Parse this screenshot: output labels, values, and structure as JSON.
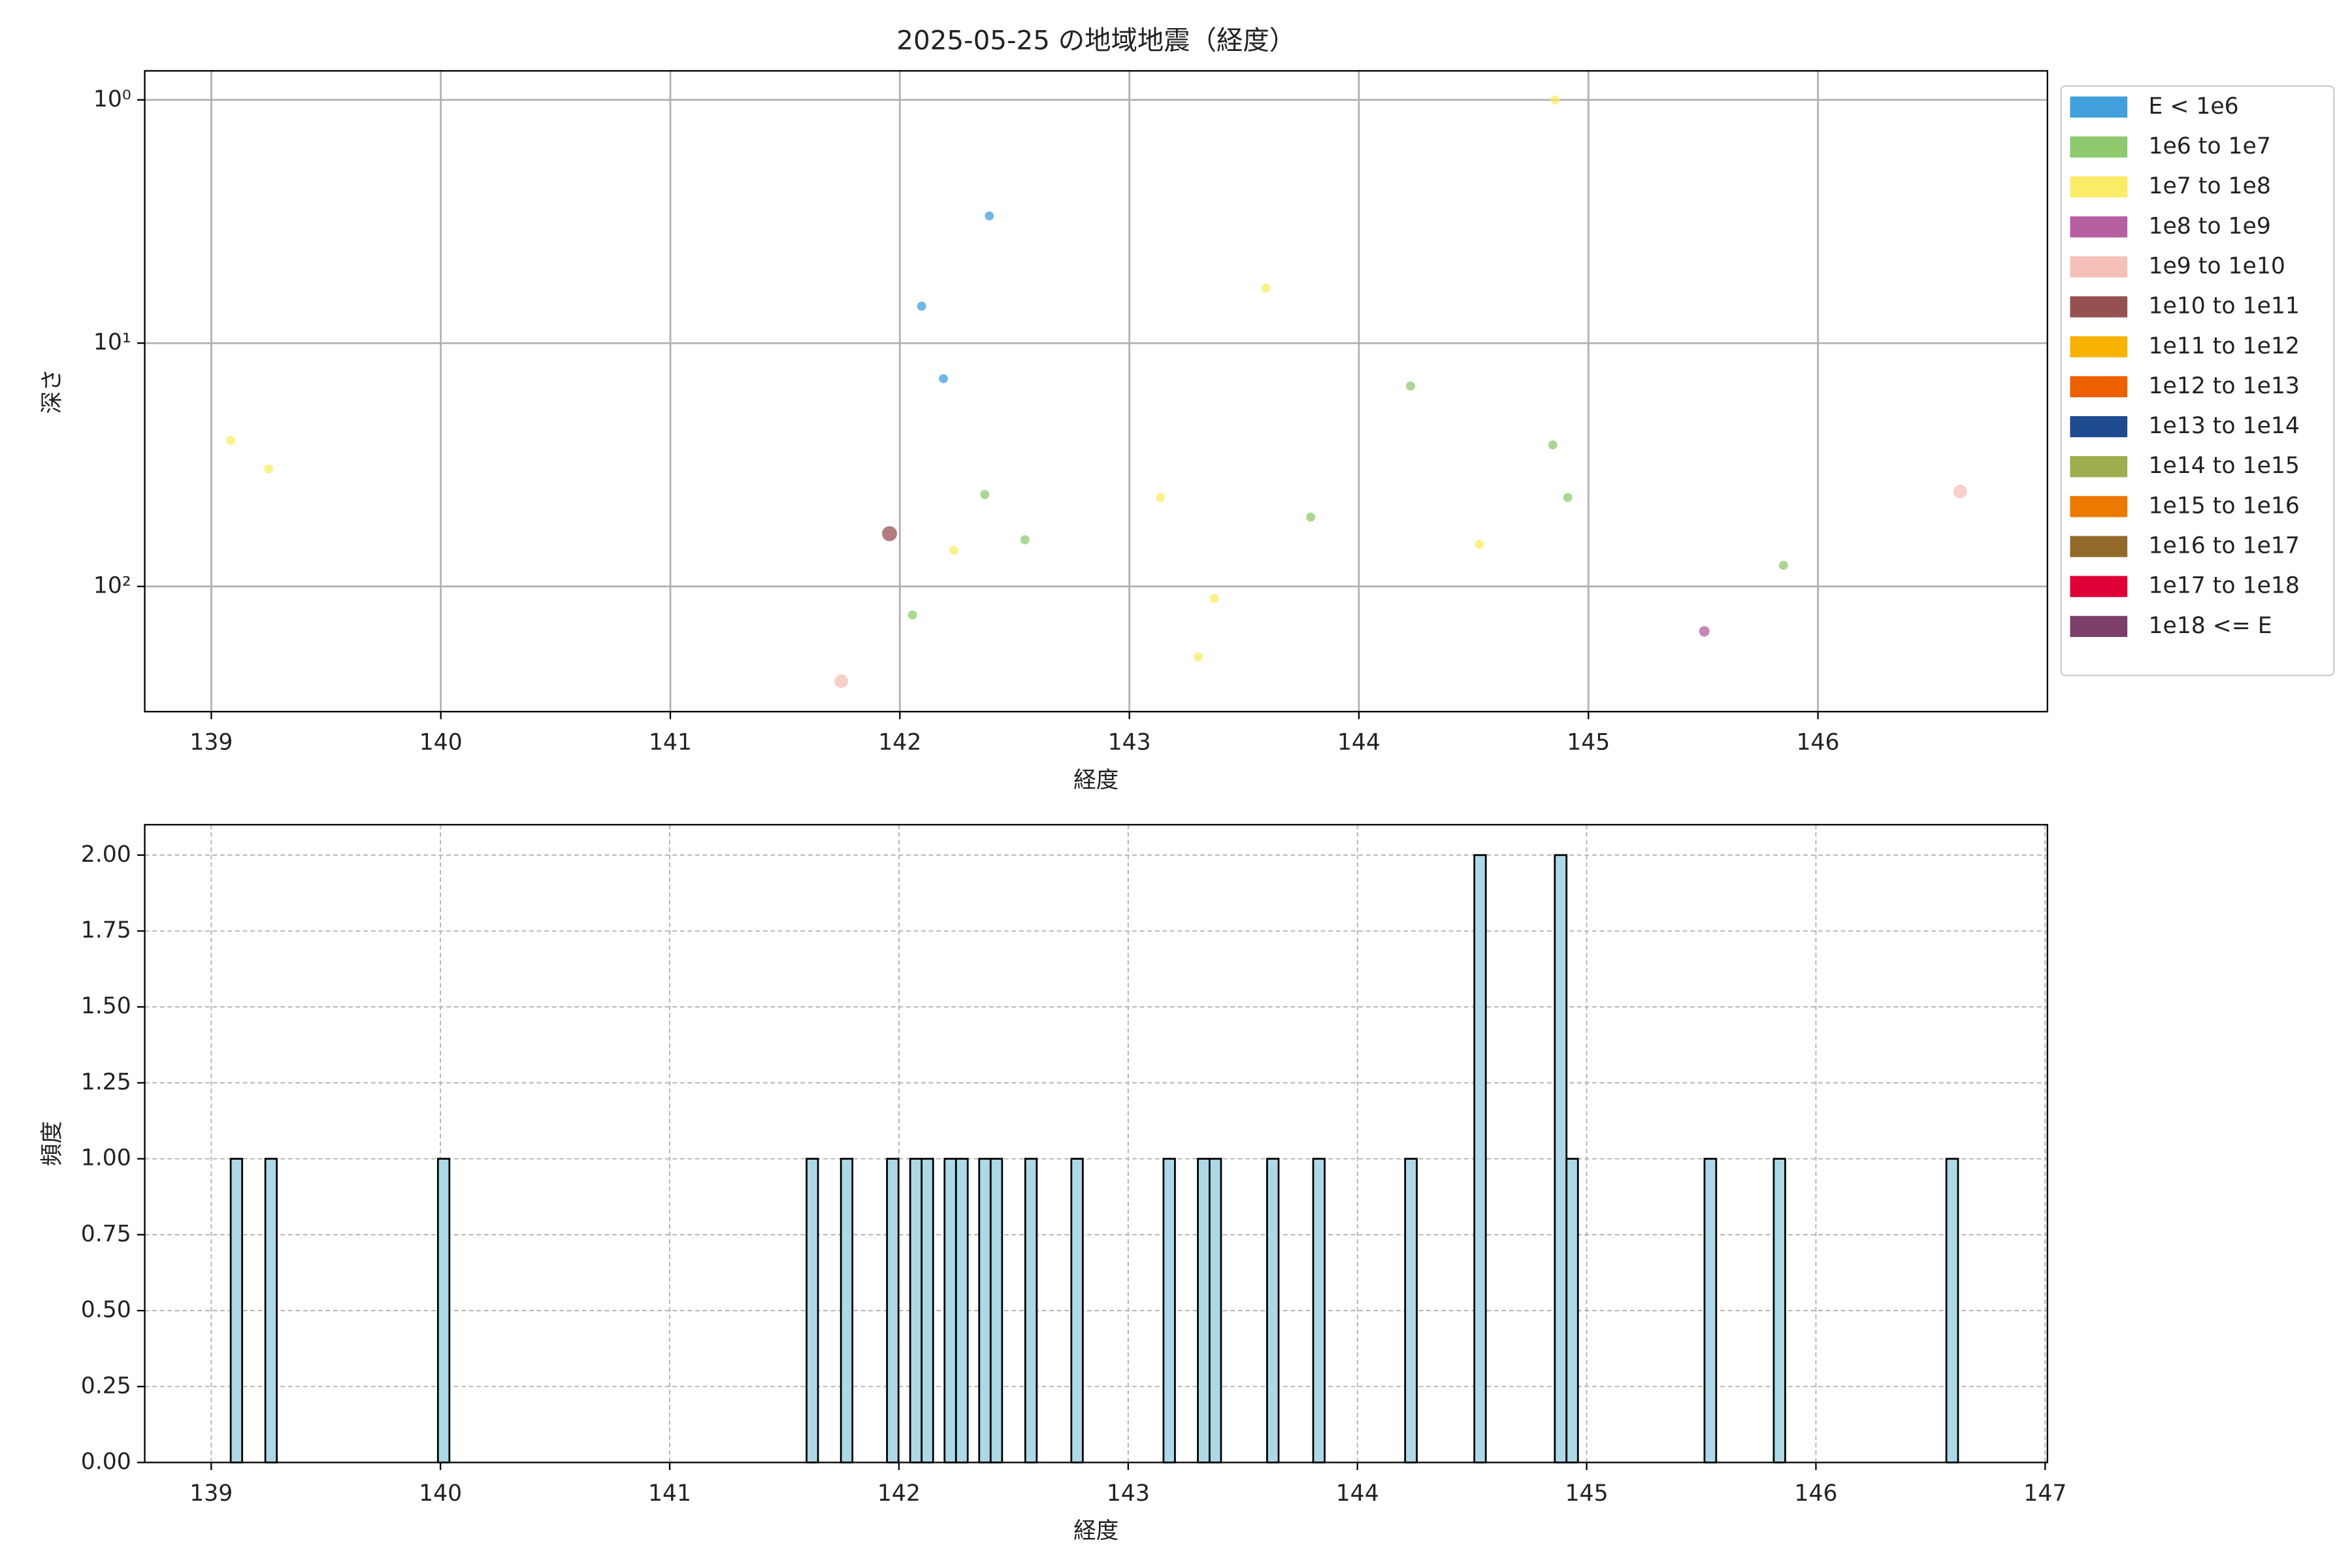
{
  "chart_data": [
    {
      "type": "scatter",
      "title": "2025-05-25 の地域地震（経度）",
      "xlabel": "経度",
      "ylabel": "深さ",
      "xlim": [
        138.71,
        147.0
      ],
      "ylim": [
        0.76,
        327
      ],
      "yscale": "log",
      "y_inverted": true,
      "xticks": [
        139,
        140,
        141,
        142,
        143,
        144,
        145,
        146
      ],
      "yticks": [
        {
          "value": 1,
          "label": "10⁰"
        },
        {
          "value": 10,
          "label": "10¹"
        },
        {
          "value": 100,
          "label": "10²"
        }
      ],
      "grid": true,
      "legend": "outside-right",
      "series": [
        {
          "name": "E < 1e6",
          "color": "#41a0db",
          "marker_size": 3,
          "x": [
            142.39,
            142.095,
            142.19
          ],
          "values": [
            3.0,
            7.05,
            14.0
          ]
        },
        {
          "name": "1e6 to 1e7",
          "color": "#8ec96e",
          "marker_size": 3,
          "x": [
            142.055,
            142.37,
            142.545,
            143.79,
            144.225,
            144.845,
            144.91,
            145.85
          ],
          "values": [
            131,
            41.9,
            64.3,
            51.9,
            15.0,
            26.2,
            43.1,
            81.9
          ]
        },
        {
          "name": "1e7 to 1e8",
          "color": "#fbeb66",
          "marker_size": 3,
          "x": [
            139.085,
            139.25,
            142.235,
            143.135,
            143.37,
            143.3,
            143.595,
            144.525,
            144.855
          ],
          "values": [
            25.1,
            32.9,
            71.0,
            43.1,
            112,
            195,
            5.94,
            67.1,
            1.0
          ]
        },
        {
          "name": "1e8 to 1e9",
          "color": "#b65fa2",
          "marker_size": 3.5,
          "x": [
            145.505
          ],
          "values": [
            153
          ]
        },
        {
          "name": "1e9 to 1e10",
          "color": "#f4c0b8",
          "marker_size": 4.5,
          "x": [
            141.745,
            146.62
          ],
          "values": [
            245,
            40.7
          ]
        },
        {
          "name": "1e10 to 1e11",
          "color": "#955150",
          "marker_size": 5,
          "x": [
            141.955
          ],
          "values": [
            60.7
          ]
        },
        {
          "name": "1e11 to 1e12",
          "color": "#f8b200",
          "marker_size": 4,
          "x": [],
          "values": []
        },
        {
          "name": "1e12 to 1e13",
          "color": "#ec6000",
          "marker_size": 4,
          "x": [],
          "values": []
        },
        {
          "name": "1e13 to 1e14",
          "color": "#1e4a90",
          "marker_size": 4,
          "x": [],
          "values": []
        },
        {
          "name": "1e14 to 1e15",
          "color": "#9cae4e",
          "marker_size": 4,
          "x": [],
          "values": []
        },
        {
          "name": "1e15 to 1e16",
          "color": "#ec7a00",
          "marker_size": 4,
          "x": [],
          "values": []
        },
        {
          "name": "1e16 to 1e17",
          "color": "#916a2a",
          "marker_size": 4,
          "x": [],
          "values": []
        },
        {
          "name": "1e17 to 1e18",
          "color": "#de0037",
          "marker_size": 4,
          "x": [],
          "values": []
        },
        {
          "name": "1e18 <= E",
          "color": "#7b3f6a",
          "marker_size": 4,
          "x": [],
          "values": []
        }
      ]
    },
    {
      "type": "histogram",
      "xlabel": "経度",
      "ylabel": "頻度",
      "color": "#add8e6",
      "edgecolor": "#000000",
      "xlim": [
        138.71,
        147.01
      ],
      "ylim": [
        0,
        2.1
      ],
      "xticks": [
        139,
        140,
        141,
        142,
        143,
        144,
        145,
        146,
        147
      ],
      "yticks": [
        {
          "value": 0,
          "label": "0.00"
        },
        {
          "value": 0.25,
          "label": "0.25"
        },
        {
          "value": 0.5,
          "label": "0.50"
        },
        {
          "value": 0.75,
          "label": "0.75"
        },
        {
          "value": 1,
          "label": "1.00"
        },
        {
          "value": 1.25,
          "label": "1.25"
        },
        {
          "value": 1.5,
          "label": "1.50"
        },
        {
          "value": 1.75,
          "label": "1.75"
        },
        {
          "value": 2,
          "label": "2.00"
        }
      ],
      "grid": "dashed",
      "bins": [
        139.085,
        139.135,
        139.236,
        139.286,
        139.989,
        140.039,
        141.597,
        141.647,
        141.747,
        141.797,
        141.948,
        141.998,
        142.049,
        142.099,
        142.149,
        142.199,
        142.249,
        142.3,
        142.35,
        142.4,
        142.45,
        142.551,
        142.601,
        142.752,
        142.802,
        143.154,
        143.204,
        143.304,
        143.355,
        143.405,
        143.606,
        143.656,
        143.807,
        143.857,
        144.208,
        144.259,
        144.51,
        144.56,
        144.861,
        144.912,
        144.962,
        145.514,
        145.565,
        145.816,
        145.866,
        146.569,
        146.62
      ],
      "counts": [
        1,
        0,
        1,
        0,
        1,
        0,
        1,
        0,
        1,
        0,
        1,
        0,
        1,
        1,
        0,
        1,
        1,
        0,
        1,
        1,
        0,
        1,
        0,
        1,
        0,
        1,
        0,
        1,
        1,
        0,
        1,
        0,
        1,
        0,
        1,
        0,
        2,
        0,
        2,
        1,
        0,
        1,
        0,
        1,
        0,
        1
      ]
    }
  ]
}
